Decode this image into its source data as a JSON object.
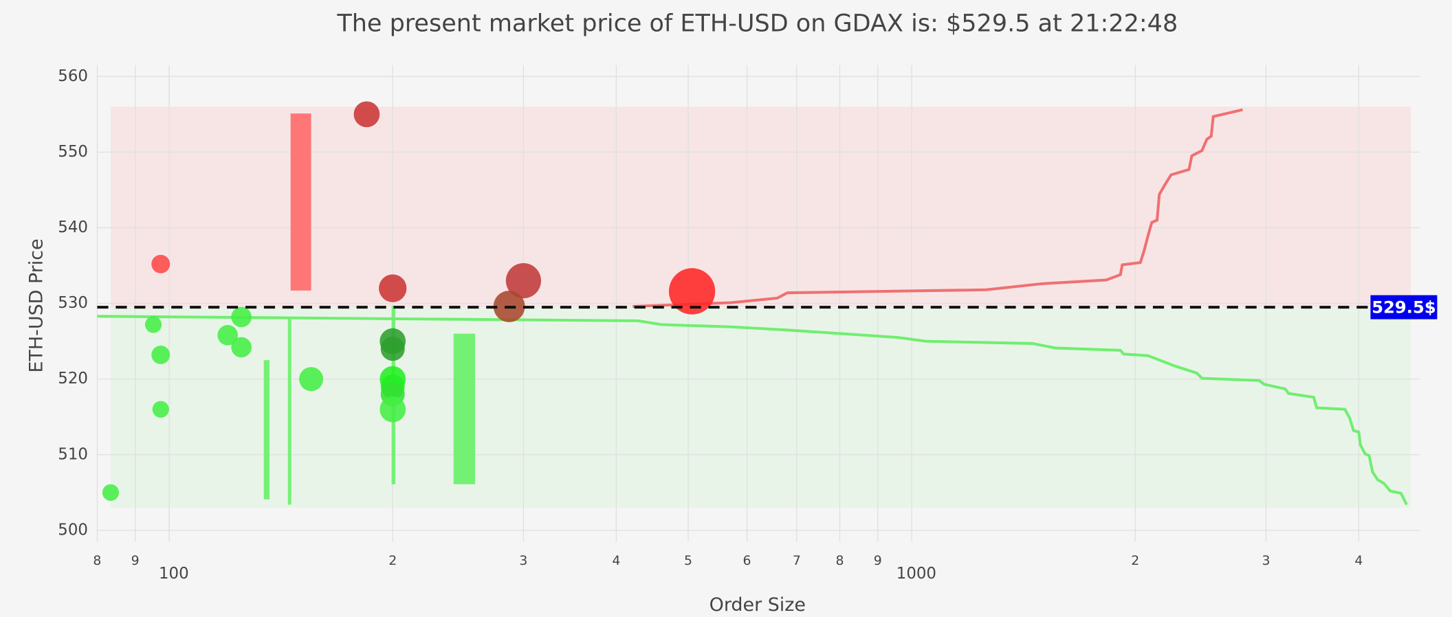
{
  "chart_data": {
    "type": "scatter",
    "title": "The present market price of ETH-USD on GDAX is: $529.5 at 21:22:48",
    "x_label": "Order Size",
    "y_label": "ETH-USD Price",
    "x_log": true,
    "grid": true,
    "xlim": [
      80,
      4830
    ],
    "ylim": [
      498.5,
      561.5
    ],
    "xticks": [
      {
        "value": 80,
        "label": "8"
      },
      {
        "value": 90,
        "label": "9"
      },
      100,
      {
        "value": 200,
        "label": "2"
      },
      {
        "value": 300,
        "label": "3"
      },
      {
        "value": 400,
        "label": "4"
      },
      {
        "value": 500,
        "label": "5"
      },
      {
        "value": 600,
        "label": "6"
      },
      {
        "value": 700,
        "label": "7"
      },
      {
        "value": 800,
        "label": "8"
      },
      {
        "value": 900,
        "label": "9"
      },
      1000,
      {
        "value": 2000,
        "label": "2"
      },
      {
        "value": 3000,
        "label": "3"
      },
      {
        "value": 4000,
        "label": "4"
      }
    ],
    "yticks": [
      500,
      510,
      520,
      530,
      540,
      550,
      560
    ],
    "zones": [
      {
        "x": [
          83.4,
          4700
        ],
        "y": [
          529.5,
          556
        ],
        "color": "#f7e5e6"
      },
      {
        "x": [
          83.4,
          4700
        ],
        "y": [
          503,
          529.5
        ],
        "color": "#e9f4e9"
      }
    ],
    "current_price": {
      "value": 529.5,
      "label": "529.5$",
      "color": "#0000ee"
    },
    "series": [
      {
        "mode": "bars",
        "color": "#ff7070",
        "x0": [
          145.7
        ],
        "x1": [
          155.3
        ],
        "low": [
          531.7
        ],
        "high": [
          555.1
        ]
      },
      {
        "mode": "bars",
        "color": "#6ef06e",
        "x0": [
          134.1,
          144.5,
          199.3,
          241.5
        ],
        "x1": [
          136.5,
          146,
          201.6,
          258.2
        ],
        "low": [
          504.1,
          503.4,
          506.1,
          506.1
        ],
        "high": [
          522.5,
          528.1,
          529.7,
          526
        ]
      },
      {
        "mode": "lines",
        "color": "#f07070",
        "x": [
          421,
          571,
          659,
          680,
          1259,
          1496,
          1828,
          1910,
          1921,
          2032,
          2056,
          2080,
          2105,
          2140,
          2155,
          2190,
          2235,
          2363,
          2383,
          2460,
          2497,
          2531,
          2547,
          2790
        ],
        "values": [
          529.6,
          530.1,
          530.7,
          531.4,
          531.8,
          532.6,
          533.1,
          533.8,
          535.1,
          535.4,
          537,
          538.9,
          540.7,
          541,
          544.4,
          545.6,
          547,
          547.7,
          549.5,
          550.2,
          551.7,
          552.1,
          554.7,
          555.6
        ]
      },
      {
        "mode": "lines",
        "color": "#70ee70",
        "x": [
          80,
          428,
          460,
          571,
          676,
          958,
          1044,
          1453,
          1563,
          1910,
          1930,
          2080,
          2265,
          2420,
          2460,
          2938,
          2983,
          3184,
          3216,
          3478,
          3511,
          3832,
          3890,
          3935,
          4000,
          4020,
          4080,
          4130,
          4175,
          4240,
          4325,
          4410,
          4560,
          4640
        ],
        "values": [
          528.3,
          527.7,
          527.2,
          526.9,
          526.5,
          525.5,
          525,
          524.7,
          524.1,
          523.8,
          523.3,
          523.1,
          521.7,
          520.8,
          520.1,
          519.8,
          519.3,
          518.7,
          518.1,
          517.6,
          516.2,
          516,
          514.8,
          513.2,
          513,
          511.3,
          510.1,
          509.9,
          507.7,
          506.7,
          506.2,
          505.2,
          504.9,
          503.4
        ]
      },
      {
        "mode": "markers",
        "x": [
          97.4,
          184.5,
          200,
          300,
          287,
          506
        ],
        "values": [
          535.2,
          555,
          532,
          533,
          529.6,
          531.6
        ],
        "sizes": [
          20,
          28,
          30,
          38,
          34,
          50
        ],
        "colors": [
          "#ff4848",
          "#cc3636",
          "#cc3636",
          "#c23a3a",
          "#a8482e",
          "#ff2626"
        ]
      },
      {
        "mode": "markers",
        "x": [
          83.4,
          95.2,
          97.4,
          97.4,
          119.9,
          125.1,
          125.1,
          155.3,
          200,
          200,
          200,
          200,
          200,
          200
        ],
        "values": [
          505,
          527.2,
          523.2,
          516,
          525.8,
          528.2,
          524.2,
          520,
          525,
          524,
          520,
          519,
          518,
          516
        ],
        "sizes": [
          18,
          18,
          20,
          18,
          22,
          22,
          22,
          26,
          28,
          26,
          28,
          26,
          26,
          28
        ],
        "colors": [
          "#44ee44",
          "#44ee44",
          "#44ee44",
          "#44ee44",
          "#44ee44",
          "#44ee44",
          "#44ee44",
          "#44ee44",
          "#2e9e2e",
          "#2e9e2e",
          "#22ee22",
          "#22ee22",
          "#33e033",
          "#44ee44"
        ]
      }
    ]
  }
}
